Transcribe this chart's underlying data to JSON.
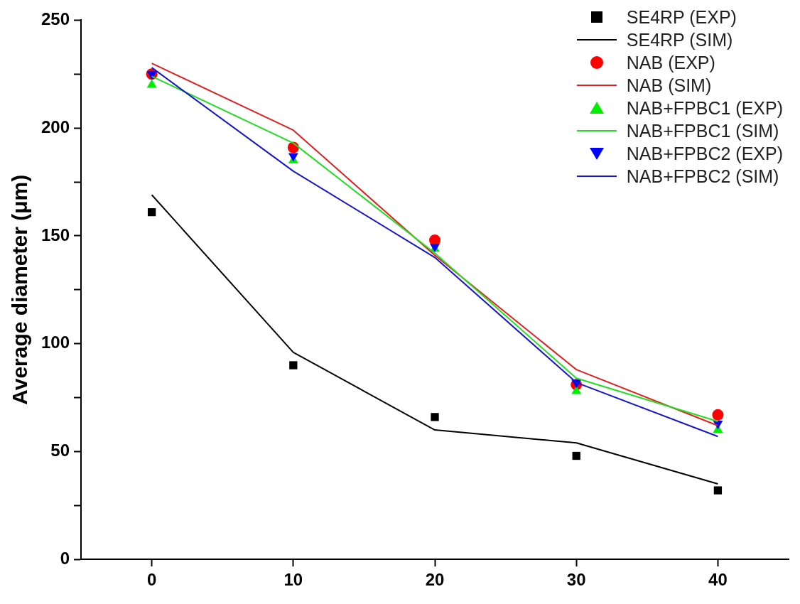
{
  "chart_data": {
    "type": "line",
    "ylabel": "Average diameter (μm)",
    "x": [
      0,
      10,
      20,
      30,
      40
    ],
    "xlim": [
      -5,
      45
    ],
    "xticks": [
      0,
      10,
      20,
      30,
      40
    ],
    "ylim": [
      0,
      250
    ],
    "yticks": [
      0,
      {
        "value": 25,
        "label": null
      },
      50,
      {
        "value": 75,
        "label": null
      },
      100,
      {
        "value": 125,
        "label": null
      },
      150,
      {
        "value": 175,
        "label": null
      },
      200,
      {
        "value": 225,
        "label": null
      },
      250
    ],
    "grid": false,
    "legend": "top right",
    "series": [
      {
        "name": "SE4RP (EXP)",
        "type": "scatter",
        "marker": "square",
        "color": "#000000",
        "values": [
          161,
          90,
          66,
          48,
          32
        ]
      },
      {
        "name": "SE4RP (SIM)",
        "line_style": "solid",
        "marker": "none",
        "color": "#000000",
        "values": [
          169,
          96,
          60,
          54,
          35
        ]
      },
      {
        "name": "NAB (EXP)",
        "type": "scatter",
        "marker": "circle",
        "color": "#ff0000",
        "values": [
          225,
          191,
          148,
          81,
          67
        ]
      },
      {
        "name": "NAB (SIM)",
        "line_style": "solid",
        "marker": "none",
        "color": "#e02020",
        "values": [
          230,
          199,
          141,
          88,
          62
        ]
      },
      {
        "name": "NAB+FPBC1 (EXP)",
        "type": "scatter",
        "marker": "triangle",
        "color": "#00ee00",
        "values": [
          220,
          185,
          144,
          78,
          60
        ]
      },
      {
        "name": "NAB+FPBC1 (SIM)",
        "line_style": "solid",
        "marker": "none",
        "color": "#22dd22",
        "values": [
          224,
          193,
          142,
          84,
          64
        ]
      },
      {
        "name": "NAB+FPBC2 (EXP)",
        "type": "scatter",
        "marker": "triangle-down",
        "color": "#0000ff",
        "values": [
          225,
          187,
          145,
          82,
          63
        ]
      },
      {
        "name": "NAB+FPBC2 (SIM)",
        "line_style": "solid",
        "marker": "none",
        "color": "#1515cc",
        "values": [
          228,
          180,
          140,
          82,
          57
        ]
      }
    ]
  }
}
